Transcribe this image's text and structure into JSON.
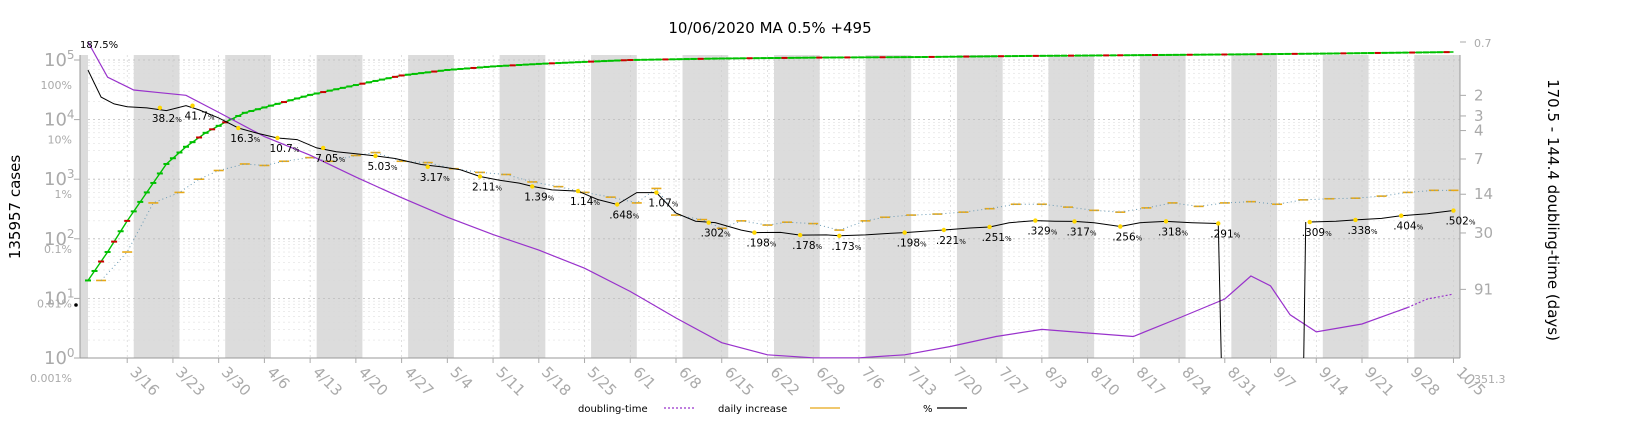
{
  "chart_data": {
    "type": "line",
    "title": "10/06/2020 MA 0.5% +495",
    "ylabel_left": "135957 cases",
    "ylabel_right": "170.5 - 144.4 doubling-time (days)",
    "x_ticks": [
      "3/16",
      "3/23",
      "3/30",
      "4/6",
      "4/13",
      "4/20",
      "4/27",
      "5/4",
      "5/11",
      "5/18",
      "5/25",
      "6/1",
      "6/8",
      "6/15",
      "6/22",
      "6/29",
      "7/6",
      "7/13",
      "7/20",
      "7/27",
      "8/3",
      "8/10",
      "8/17",
      "8/24",
      "8/31",
      "9/7",
      "9/14",
      "9/21",
      "9/28",
      "10/5"
    ],
    "y_ticks_cases": [
      {
        "base": "10",
        "exp": "0"
      },
      {
        "base": "10",
        "exp": "1"
      },
      {
        "base": "10",
        "exp": "2"
      },
      {
        "base": "10",
        "exp": "3"
      },
      {
        "base": "10",
        "exp": "4"
      },
      {
        "base": "10",
        "exp": "5"
      }
    ],
    "y_ticks_percent": [
      "0.001%",
      "0.01%",
      "0.1%",
      "1%",
      "10%",
      "100%"
    ],
    "y_ticks_doubling": [
      "0.7",
      "2",
      "3",
      "4",
      "7",
      "14",
      "30",
      "91",
      "351.3"
    ],
    "top_annotation": "187.5%",
    "percent_annotations": [
      {
        "label": "38.2",
        "date": "3/21",
        "value": 38.2
      },
      {
        "label": "41.7",
        "date": "3/26",
        "value": 41.7
      },
      {
        "label": "16.3",
        "date": "4/2",
        "value": 16.3
      },
      {
        "label": "10.7",
        "date": "4/8",
        "value": 10.7
      },
      {
        "label": "7.05",
        "date": "4/15",
        "value": 7.05
      },
      {
        "label": "5.03",
        "date": "4/23",
        "value": 5.03
      },
      {
        "label": "3.17",
        "date": "5/1",
        "value": 3.17
      },
      {
        "label": "2.11",
        "date": "5/9",
        "value": 2.11
      },
      {
        "label": "1.39",
        "date": "5/17",
        "value": 1.39
      },
      {
        "label": "1.14",
        "date": "5/24",
        "value": 1.14
      },
      {
        "label": ".648",
        "date": "5/30",
        "value": 0.648
      },
      {
        "label": "1.07",
        "date": "6/5",
        "value": 1.07
      },
      {
        "label": ".302",
        "date": "6/13",
        "value": 0.302
      },
      {
        "label": ".198",
        "date": "6/20",
        "value": 0.198
      },
      {
        "label": ".178",
        "date": "6/27",
        "value": 0.178
      },
      {
        "label": ".173",
        "date": "7/3",
        "value": 0.173
      },
      {
        "label": ".198",
        "date": "7/13",
        "value": 0.198
      },
      {
        "label": ".221",
        "date": "7/19",
        "value": 0.221
      },
      {
        "label": ".251",
        "date": "7/26",
        "value": 0.251
      },
      {
        "label": ".329",
        "date": "8/2",
        "value": 0.329
      },
      {
        "label": ".317",
        "date": "8/8",
        "value": 0.317
      },
      {
        "label": ".256",
        "date": "8/15",
        "value": 0.256
      },
      {
        "label": ".318",
        "date": "8/22",
        "value": 0.318
      },
      {
        "label": ".291",
        "date": "8/30",
        "value": 0.291
      },
      {
        "label": ".309",
        "date": "9/13",
        "value": 0.309
      },
      {
        "label": ".338",
        "date": "9/20",
        "value": 0.338
      },
      {
        "label": ".404",
        "date": "9/27",
        "value": 0.404
      },
      {
        "label": ".502",
        "date": "10/5",
        "value": 0.502
      }
    ],
    "percent_line": [
      [
        "3/10",
        187.5
      ],
      [
        "3/12",
        60
      ],
      [
        "3/14",
        45
      ],
      [
        "3/16",
        40
      ],
      [
        "3/19",
        38
      ],
      [
        "3/22",
        34
      ],
      [
        "3/25",
        41.7
      ],
      [
        "3/27",
        35
      ],
      [
        "3/30",
        25
      ],
      [
        "4/2",
        16.3
      ],
      [
        "4/5",
        13
      ],
      [
        "4/8",
        10.7
      ],
      [
        "4/11",
        10
      ],
      [
        "4/14",
        7.05
      ],
      [
        "4/17",
        6
      ],
      [
        "4/20",
        5.5
      ],
      [
        "4/23",
        5.03
      ],
      [
        "4/26",
        4.5
      ],
      [
        "4/30",
        3.5
      ],
      [
        "5/3",
        3.17
      ],
      [
        "5/6",
        2.8
      ],
      [
        "5/9",
        2.11
      ],
      [
        "5/12",
        1.8
      ],
      [
        "5/15",
        1.6
      ],
      [
        "5/17",
        1.39
      ],
      [
        "5/20",
        1.2
      ],
      [
        "5/24",
        1.14
      ],
      [
        "5/27",
        0.8
      ],
      [
        "5/30",
        0.648
      ],
      [
        "6/2",
        1.07
      ],
      [
        "6/5",
        1.07
      ],
      [
        "6/8",
        0.45
      ],
      [
        "6/11",
        0.32
      ],
      [
        "6/14",
        0.302
      ],
      [
        "6/18",
        0.22
      ],
      [
        "6/20",
        0.198
      ],
      [
        "6/24",
        0.2
      ],
      [
        "6/27",
        0.178
      ],
      [
        "7/1",
        0.18
      ],
      [
        "7/3",
        0.173
      ],
      [
        "7/7",
        0.18
      ],
      [
        "7/10",
        0.19
      ],
      [
        "7/13",
        0.198
      ],
      [
        "7/16",
        0.21
      ],
      [
        "7/19",
        0.221
      ],
      [
        "7/23",
        0.24
      ],
      [
        "7/26",
        0.251
      ],
      [
        "7/29",
        0.3
      ],
      [
        "8/2",
        0.329
      ],
      [
        "8/5",
        0.32
      ],
      [
        "8/8",
        0.317
      ],
      [
        "8/11",
        0.3
      ],
      [
        "8/15",
        0.256
      ],
      [
        "8/18",
        0.3
      ],
      [
        "8/22",
        0.318
      ],
      [
        "8/26",
        0.3
      ],
      [
        "8/30",
        0.291
      ],
      [
        "9/13",
        0.309
      ],
      [
        "9/17",
        0.32
      ],
      [
        "9/20",
        0.338
      ],
      [
        "9/24",
        0.36
      ],
      [
        "9/27",
        0.404
      ],
      [
        "10/1",
        0.44
      ],
      [
        "10/5",
        0.502
      ]
    ],
    "percent_gap": [
      "8/31",
      "9/9"
    ],
    "doubling_time_line": [
      [
        "3/10",
        0.7
      ],
      [
        "3/13",
        1.4
      ],
      [
        "3/17",
        1.8
      ],
      [
        "3/21",
        1.9
      ],
      [
        "3/25",
        2.0
      ],
      [
        "3/30",
        2.8
      ],
      [
        "4/6",
        4.5
      ],
      [
        "4/13",
        6.5
      ],
      [
        "4/20",
        10
      ],
      [
        "4/27",
        15
      ],
      [
        "5/4",
        22
      ],
      [
        "5/11",
        31
      ],
      [
        "5/18",
        42
      ],
      [
        "5/25",
        60
      ],
      [
        "6/1",
        95
      ],
      [
        "6/8",
        160
      ],
      [
        "6/15",
        260
      ],
      [
        "6/22",
        330
      ],
      [
        "6/29",
        350
      ],
      [
        "7/6",
        350
      ],
      [
        "7/13",
        330
      ],
      [
        "7/20",
        280
      ],
      [
        "7/27",
        230
      ],
      [
        "8/3",
        200
      ],
      [
        "8/10",
        215
      ],
      [
        "8/17",
        230
      ],
      [
        "8/24",
        160
      ],
      [
        "8/31",
        110
      ],
      [
        "9/4",
        70
      ],
      [
        "9/7",
        85
      ],
      [
        "9/10",
        150
      ],
      [
        "9/14",
        210
      ],
      [
        "9/21",
        180
      ],
      [
        "9/28",
        130
      ],
      [
        "10/1",
        110
      ],
      [
        "10/5",
        100
      ]
    ],
    "cases_markers_note": "cumulative cases rising from ~20 (3/10) to 135957 (10/5)",
    "cases_line": [
      [
        "3/10",
        20
      ],
      [
        "3/13",
        60
      ],
      [
        "3/16",
        200
      ],
      [
        "3/19",
        600
      ],
      [
        "3/22",
        1800
      ],
      [
        "3/25",
        3500
      ],
      [
        "3/28",
        6000
      ],
      [
        "3/31",
        9000
      ],
      [
        "4/3",
        13000
      ],
      [
        "4/6",
        16000
      ],
      [
        "4/13",
        26000
      ],
      [
        "4/20",
        38000
      ],
      [
        "4/27",
        55000
      ],
      [
        "5/4",
        68000
      ],
      [
        "5/11",
        78000
      ],
      [
        "5/18",
        86000
      ],
      [
        "5/25",
        93000
      ],
      [
        "6/1",
        100000
      ],
      [
        "6/15",
        106000
      ],
      [
        "7/1",
        110000
      ],
      [
        "7/15",
        112000
      ],
      [
        "8/1",
        117000
      ],
      [
        "8/15",
        120000
      ],
      [
        "9/1",
        124000
      ],
      [
        "9/15",
        128000
      ],
      [
        "10/5",
        135957
      ]
    ],
    "daily_increase": [
      [
        "3/12",
        20
      ],
      [
        "3/16",
        60
      ],
      [
        "3/20",
        400
      ],
      [
        "3/24",
        600
      ],
      [
        "3/27",
        1000
      ],
      [
        "3/30",
        1400
      ],
      [
        "4/3",
        1800
      ],
      [
        "4/6",
        1700
      ],
      [
        "4/9",
        2000
      ],
      [
        "4/13",
        2300
      ],
      [
        "4/16",
        2000
      ],
      [
        "4/20",
        2500
      ],
      [
        "4/23",
        2800
      ],
      [
        "4/27",
        2000
      ],
      [
        "5/1",
        1900
      ],
      [
        "5/5",
        1500
      ],
      [
        "5/9",
        1300
      ],
      [
        "5/13",
        1200
      ],
      [
        "5/17",
        900
      ],
      [
        "5/21",
        750
      ],
      [
        "5/25",
        600
      ],
      [
        "5/29",
        500
      ],
      [
        "6/2",
        400
      ],
      [
        "6/5",
        700
      ],
      [
        "6/8",
        250
      ],
      [
        "6/12",
        210
      ],
      [
        "6/15",
        150
      ],
      [
        "6/18",
        200
      ],
      [
        "6/22",
        170
      ],
      [
        "6/25",
        190
      ],
      [
        "6/29",
        180
      ],
      [
        "7/3",
        140
      ],
      [
        "7/7",
        200
      ],
      [
        "7/10",
        230
      ],
      [
        "7/14",
        250
      ],
      [
        "7/18",
        260
      ],
      [
        "7/22",
        280
      ],
      [
        "7/26",
        320
      ],
      [
        "7/30",
        380
      ],
      [
        "8/3",
        380
      ],
      [
        "8/7",
        340
      ],
      [
        "8/11",
        300
      ],
      [
        "8/15",
        280
      ],
      [
        "8/19",
        330
      ],
      [
        "8/23",
        400
      ],
      [
        "8/27",
        350
      ],
      [
        "8/31",
        400
      ],
      [
        "9/4",
        420
      ],
      [
        "9/8",
        380
      ],
      [
        "9/12",
        450
      ],
      [
        "9/16",
        470
      ],
      [
        "9/20",
        480
      ],
      [
        "9/24",
        520
      ],
      [
        "9/28",
        600
      ],
      [
        "10/2",
        650
      ],
      [
        "10/5",
        650
      ]
    ],
    "legend": [
      {
        "name": "doubling-time",
        "style": "dotted",
        "color": "#9932cc"
      },
      {
        "name": "daily increase",
        "style": "solid",
        "color": "#e6a817"
      },
      {
        "name": "%",
        "style": "solid",
        "color": "#000000"
      }
    ],
    "colors": {
      "percent": "#000000",
      "doubling": "#9932cc",
      "daily": "#e6a817",
      "cases_up": "#00c000",
      "cases_down": "#cc0000",
      "band": "#dcdcdc",
      "annotation_point": "#ffd700"
    },
    "grid": true,
    "shaded_alternating_weeks": true
  }
}
